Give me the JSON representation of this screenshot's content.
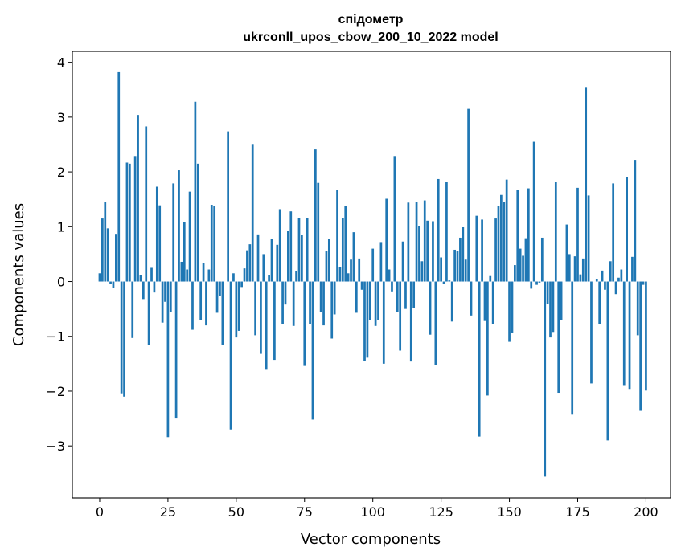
{
  "chart_data": {
    "type": "bar",
    "title_line1": "спідометр",
    "title_line2": "ukrconll_upos_cbow_200_10_2022 model",
    "xlabel": "Vector components",
    "ylabel": "Components values",
    "xlim": [
      -10,
      209
    ],
    "ylim": [
      -3.95,
      4.2
    ],
    "xticks": [
      0,
      25,
      50,
      75,
      100,
      125,
      150,
      175,
      200
    ],
    "xtick_labels": [
      "0",
      "25",
      "50",
      "75",
      "100",
      "125",
      "150",
      "175",
      "200"
    ],
    "yticks": [
      -3,
      -2,
      -1,
      0,
      1,
      2,
      3,
      4
    ],
    "ytick_labels": [
      "−3",
      "−2",
      "−1",
      "0",
      "1",
      "2",
      "3",
      "4"
    ],
    "bar_color": "#1f77b4",
    "grid": false,
    "values": [
      0.15,
      1.15,
      1.45,
      0.97,
      -0.05,
      -0.12,
      0.87,
      3.82,
      -2.04,
      -2.1,
      2.17,
      2.15,
      -1.03,
      2.29,
      3.04,
      0.12,
      -0.32,
      2.83,
      -1.16,
      0.25,
      -0.2,
      1.73,
      1.39,
      -0.75,
      -0.37,
      -2.84,
      -0.56,
      1.79,
      -2.5,
      2.03,
      0.36,
      1.09,
      0.22,
      1.64,
      -0.88,
      3.28,
      2.15,
      -0.7,
      0.34,
      -0.8,
      0.22,
      1.4,
      1.38,
      -0.57,
      -0.27,
      -1.15,
      0.0,
      2.74,
      -2.7,
      0.15,
      -1.02,
      -0.9,
      -0.1,
      0.24,
      0.57,
      0.68,
      2.51,
      -0.98,
      0.86,
      -1.32,
      0.5,
      -1.61,
      0.11,
      0.77,
      -1.43,
      0.67,
      1.32,
      -0.77,
      -0.42,
      0.92,
      1.28,
      -0.81,
      0.19,
      1.16,
      0.85,
      -1.54,
      1.16,
      -0.78,
      -2.52,
      2.41,
      1.8,
      -0.55,
      -0.8,
      0.55,
      0.78,
      -1.04,
      -0.6,
      1.67,
      0.27,
      1.16,
      1.38,
      0.15,
      0.4,
      0.9,
      -0.57,
      0.42,
      -0.15,
      -1.45,
      -1.39,
      -0.7,
      0.6,
      -0.81,
      -0.7,
      0.72,
      -1.5,
      1.51,
      0.22,
      -0.18,
      2.29,
      -0.55,
      -1.26,
      0.73,
      -0.5,
      1.44,
      -1.46,
      -0.48,
      1.45,
      1.01,
      0.37,
      1.48,
      1.11,
      -0.97,
      1.1,
      -1.52,
      1.87,
      0.44,
      -0.05,
      1.82,
      0.02,
      -0.73,
      0.58,
      0.55,
      0.8,
      0.99,
      0.4,
      3.15,
      -0.62,
      0.0,
      1.2,
      -2.83,
      1.13,
      -0.72,
      -2.08,
      0.1,
      -0.78,
      1.15,
      1.38,
      1.58,
      1.45,
      1.86,
      -1.1,
      -0.93,
      0.3,
      1.67,
      0.6,
      0.47,
      0.79,
      1.7,
      -0.13,
      2.55,
      -0.06,
      -0.02,
      0.8,
      -3.56,
      -0.41,
      -1.02,
      -0.92,
      1.82,
      -2.03,
      -0.7,
      0.0,
      1.04,
      0.5,
      -2.43,
      0.46,
      1.71,
      0.13,
      0.42,
      3.55,
      1.57,
      -1.86,
      0.0,
      0.05,
      -0.78,
      0.2,
      -0.15,
      -2.9,
      0.37,
      1.79,
      -0.23,
      0.07,
      0.22,
      -1.89,
      1.91,
      -1.96,
      0.45,
      2.22,
      -0.98,
      -2.36,
      -0.06,
      -1.99
    ]
  }
}
